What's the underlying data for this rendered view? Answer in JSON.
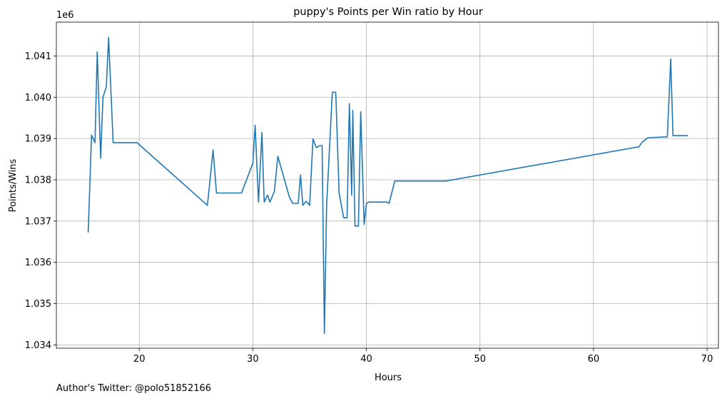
{
  "footer": {
    "author": "Author's Twitter: @polo51852166"
  },
  "chart_data": {
    "type": "line",
    "title": "puppy's Points per Win ratio by Hour",
    "xlabel": "Hours",
    "ylabel": "Points/Wins",
    "y_offset_label": "1e6",
    "xlim": [
      12.7,
      71.0
    ],
    "ylim": [
      1033.92,
      1041.82
    ],
    "x_ticks": [
      20,
      30,
      40,
      50,
      60,
      70
    ],
    "x_tick_labels": [
      "20",
      "30",
      "40",
      "50",
      "60",
      "70"
    ],
    "y_ticks": [
      1034,
      1035,
      1036,
      1037,
      1038,
      1039,
      1040,
      1041
    ],
    "y_tick_labels": [
      "1.034",
      "1.035",
      "1.036",
      "1.037",
      "1.038",
      "1.039",
      "1.040",
      "1.041"
    ],
    "y_unit": "thousands (×1e3); axis multiplier 1e6 shown",
    "grid": true,
    "line_color": "#1f77b4",
    "series": [
      {
        "x": [
          15.5,
          15.8,
          16.1,
          16.3,
          16.6,
          16.8,
          17.1,
          17.3,
          17.7,
          19.8,
          26.0,
          26.5,
          26.8,
          29.0,
          30.0,
          30.2,
          30.5,
          30.8,
          31.0,
          31.3,
          31.5,
          31.9,
          32.2,
          33.2,
          33.5,
          34.0,
          34.2,
          34.4,
          34.7,
          35.0,
          35.3,
          35.6,
          35.9,
          36.1,
          36.3,
          36.5,
          37.0,
          37.3,
          37.6,
          38.0,
          38.3,
          38.5,
          38.7,
          38.8,
          39.0,
          39.3,
          39.5,
          39.8,
          40.0,
          40.2,
          41.0,
          41.8,
          42.0,
          42.5,
          47.0,
          64.0,
          64.3,
          64.8,
          66.5,
          66.8,
          67.0,
          67.5,
          68.3
        ],
        "y": [
          1036.72,
          1039.08,
          1038.9,
          1041.1,
          1038.52,
          1040.0,
          1040.25,
          1041.45,
          1038.9,
          1038.9,
          1037.38,
          1038.72,
          1037.68,
          1037.68,
          1038.4,
          1039.32,
          1037.46,
          1039.15,
          1037.46,
          1037.63,
          1037.46,
          1037.72,
          1038.57,
          1037.6,
          1037.43,
          1037.43,
          1038.12,
          1037.38,
          1037.48,
          1037.38,
          1038.99,
          1038.78,
          1038.83,
          1038.83,
          1034.28,
          1037.38,
          1040.12,
          1040.12,
          1037.68,
          1037.08,
          1037.08,
          1039.85,
          1037.63,
          1039.68,
          1036.88,
          1036.88,
          1039.65,
          1036.92,
          1037.42,
          1037.46,
          1037.46,
          1037.46,
          1037.43,
          1037.97,
          1037.97,
          1038.8,
          1038.92,
          1039.02,
          1039.04,
          1040.93,
          1039.07,
          1039.07,
          1039.07
        ]
      }
    ]
  }
}
